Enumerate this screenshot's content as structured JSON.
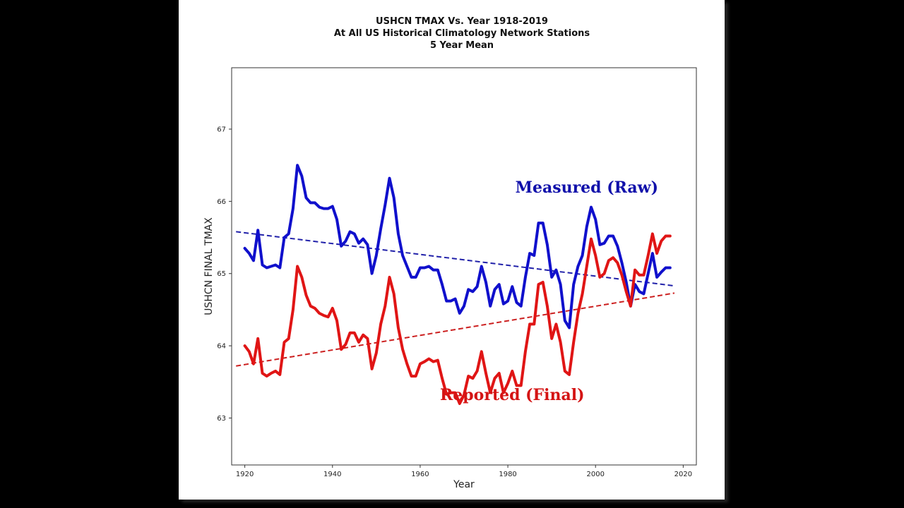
{
  "chart_data": {
    "type": "line",
    "title": [
      "USHCN TMAX Vs. Year 1918-2019",
      "At All US Historical Climatology Network Stations",
      "5 Year Mean"
    ],
    "xlabel": "Year",
    "ylabel": "USHCN FINAL TMAX",
    "xlim": [
      1917,
      2023
    ],
    "ylim": [
      62.35,
      67.85
    ],
    "x_ticks": [
      1920,
      1940,
      1960,
      1980,
      2000,
      2020
    ],
    "y_ticks": [
      63,
      64,
      65,
      66,
      67
    ],
    "grid": false,
    "series": [
      {
        "name": "Measured (Raw)",
        "color": "#1010cc",
        "x": [
          1920,
          1921,
          1922,
          1923,
          1924,
          1925,
          1926,
          1927,
          1928,
          1929,
          1930,
          1931,
          1932,
          1933,
          1934,
          1935,
          1936,
          1937,
          1938,
          1939,
          1940,
          1941,
          1942,
          1943,
          1944,
          1945,
          1946,
          1947,
          1948,
          1949,
          1950,
          1951,
          1952,
          1953,
          1954,
          1955,
          1956,
          1957,
          1958,
          1959,
          1960,
          1961,
          1962,
          1963,
          1964,
          1965,
          1966,
          1967,
          1968,
          1969,
          1970,
          1971,
          1972,
          1973,
          1974,
          1975,
          1976,
          1977,
          1978,
          1979,
          1980,
          1981,
          1982,
          1983,
          1984,
          1985,
          1986,
          1987,
          1988,
          1989,
          1990,
          1991,
          1992,
          1993,
          1994,
          1995,
          1996,
          1997,
          1998,
          1999,
          2000,
          2001,
          2002,
          2003,
          2004,
          2005,
          2006,
          2007,
          2008,
          2009,
          2010,
          2011,
          2012,
          2013,
          2014,
          2015,
          2016,
          2017
        ],
        "values": [
          65.35,
          65.28,
          65.18,
          65.6,
          65.12,
          65.08,
          65.1,
          65.12,
          65.08,
          65.5,
          65.55,
          65.9,
          66.5,
          66.35,
          66.05,
          65.98,
          65.98,
          65.92,
          65.9,
          65.9,
          65.93,
          65.75,
          65.38,
          65.45,
          65.58,
          65.55,
          65.42,
          65.48,
          65.4,
          65.0,
          65.25,
          65.62,
          65.95,
          66.32,
          66.05,
          65.55,
          65.25,
          65.1,
          64.95,
          64.95,
          65.08,
          65.08,
          65.1,
          65.05,
          65.05,
          64.85,
          64.62,
          64.62,
          64.65,
          64.45,
          64.55,
          64.78,
          64.75,
          64.82,
          65.1,
          64.88,
          64.55,
          64.78,
          64.85,
          64.58,
          64.62,
          64.82,
          64.6,
          64.55,
          64.95,
          65.28,
          65.25,
          65.7,
          65.7,
          65.4,
          64.95,
          65.05,
          64.85,
          64.35,
          64.25,
          64.85,
          65.1,
          65.25,
          65.65,
          65.92,
          65.75,
          65.4,
          65.42,
          65.52,
          65.52,
          65.38,
          65.15,
          64.88,
          64.55,
          64.85,
          64.75,
          64.72,
          65.0,
          65.28,
          64.95,
          65.02,
          65.08,
          65.08
        ]
      },
      {
        "name": "Reported (Final)",
        "color": "#e01515",
        "x": [
          1920,
          1921,
          1922,
          1923,
          1924,
          1925,
          1926,
          1927,
          1928,
          1929,
          1930,
          1931,
          1932,
          1933,
          1934,
          1935,
          1936,
          1937,
          1938,
          1939,
          1940,
          1941,
          1942,
          1943,
          1944,
          1945,
          1946,
          1947,
          1948,
          1949,
          1950,
          1951,
          1952,
          1953,
          1954,
          1955,
          1956,
          1957,
          1958,
          1959,
          1960,
          1961,
          1962,
          1963,
          1964,
          1965,
          1966,
          1967,
          1968,
          1969,
          1970,
          1971,
          1972,
          1973,
          1974,
          1975,
          1976,
          1977,
          1978,
          1979,
          1980,
          1981,
          1982,
          1983,
          1984,
          1985,
          1986,
          1987,
          1988,
          1989,
          1990,
          1991,
          1992,
          1993,
          1994,
          1995,
          1996,
          1997,
          1998,
          1999,
          2000,
          2001,
          2002,
          2003,
          2004,
          2005,
          2006,
          2007,
          2008,
          2009,
          2010,
          2011,
          2012,
          2013,
          2014,
          2015,
          2016,
          2017
        ],
        "values": [
          64.0,
          63.92,
          63.75,
          64.1,
          63.62,
          63.58,
          63.62,
          63.65,
          63.6,
          64.05,
          64.1,
          64.5,
          65.1,
          64.95,
          64.7,
          64.55,
          64.52,
          64.45,
          64.42,
          64.4,
          64.52,
          64.35,
          63.95,
          64.02,
          64.18,
          64.18,
          64.05,
          64.15,
          64.1,
          63.68,
          63.9,
          64.3,
          64.55,
          64.95,
          64.72,
          64.25,
          63.95,
          63.75,
          63.58,
          63.58,
          63.75,
          63.78,
          63.82,
          63.78,
          63.8,
          63.55,
          63.33,
          63.35,
          63.35,
          63.2,
          63.32,
          63.58,
          63.55,
          63.65,
          63.92,
          63.62,
          63.35,
          63.55,
          63.62,
          63.35,
          63.48,
          63.65,
          63.45,
          63.45,
          63.92,
          64.3,
          64.3,
          64.85,
          64.88,
          64.55,
          64.1,
          64.3,
          64.05,
          63.65,
          63.6,
          64.05,
          64.45,
          64.72,
          65.1,
          65.48,
          65.25,
          64.95,
          65.0,
          65.18,
          65.22,
          65.15,
          64.98,
          64.75,
          64.55,
          65.05,
          64.98,
          64.98,
          65.25,
          65.55,
          65.28,
          65.45,
          65.52,
          65.52
        ]
      }
    ],
    "trendlines": [
      {
        "name": "Measured (Raw) trend",
        "color": "#2222aa",
        "x": [
          1918,
          2018
        ],
        "values": [
          65.58,
          64.83
        ]
      },
      {
        "name": "Reported (Final) trend",
        "color": "#cc2020",
        "x": [
          1918,
          2018
        ],
        "values": [
          63.72,
          64.73
        ]
      }
    ],
    "annotations": [
      {
        "text": "Measured (Raw)",
        "color": "#1010aa",
        "x": 1998,
        "y": 66.12
      },
      {
        "text": "Reported (Final)",
        "color": "#d41414",
        "x": 1981,
        "y": 63.25
      }
    ]
  }
}
